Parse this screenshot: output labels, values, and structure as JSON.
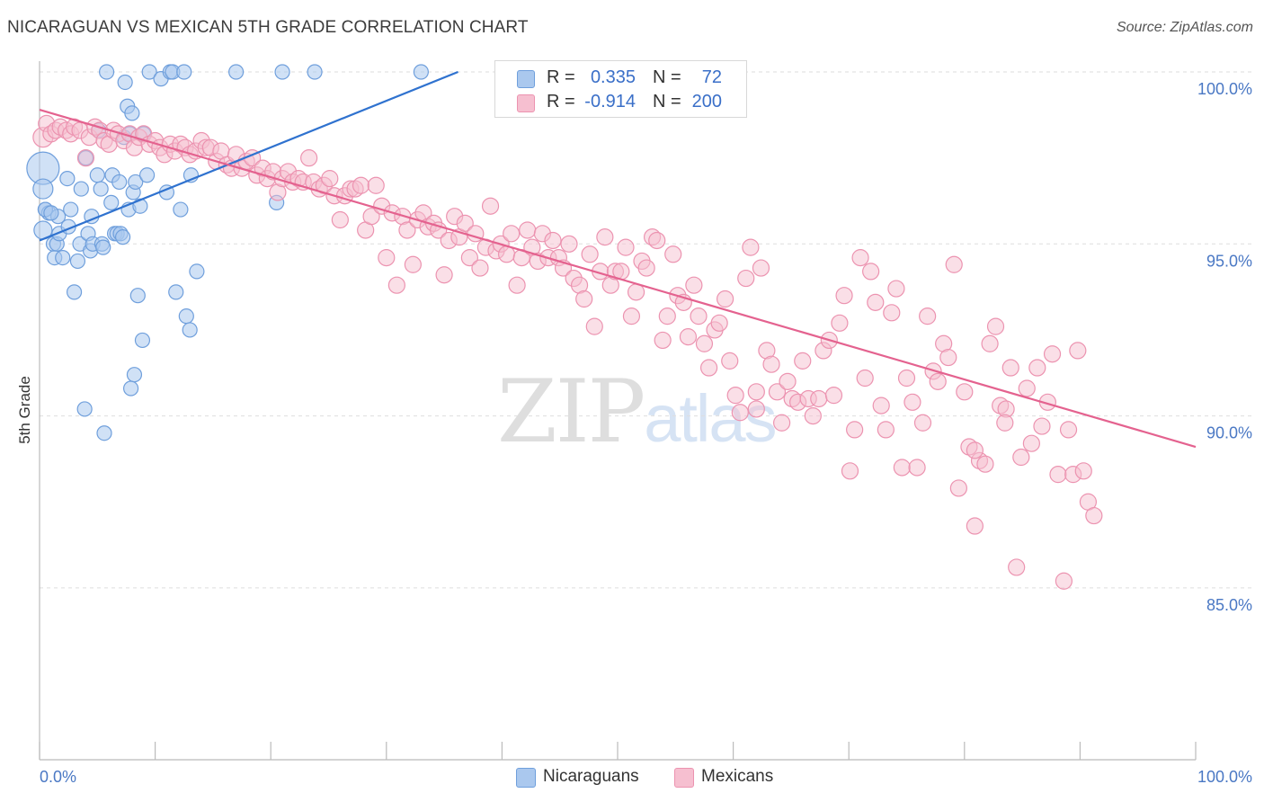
{
  "header": {
    "title": "NICARAGUAN VS MEXICAN 5TH GRADE CORRELATION CHART",
    "source": "Source: ZipAtlas.com"
  },
  "watermark": {
    "part1": "ZIP",
    "part2": "atlas"
  },
  "legend_top": [
    {
      "r_label": "R =",
      "r_value": "0.335",
      "n_label": "N =",
      "n_value": "72"
    },
    {
      "r_label": "R =",
      "r_value": "-0.914",
      "n_label": "N =",
      "n_value": "200"
    }
  ],
  "legend_bottom": [
    {
      "label": "Nicaraguans"
    },
    {
      "label": "Mexicans"
    }
  ],
  "colors": {
    "nicaraguans_fill": "#aac8ee",
    "nicaraguans_stroke": "#6f9fdc",
    "nicaraguans_line": "#2f72cf",
    "mexicans_fill": "#f6bfd0",
    "mexicans_stroke": "#ec93b0",
    "mexicans_line": "#e4628f",
    "grid": "#dedede",
    "axis_label": "#4a78c4"
  },
  "chart_data": {
    "type": "scatter",
    "title": "NICARAGUAN VS MEXICAN 5TH GRADE CORRELATION CHART",
    "xlabel": "",
    "ylabel": "5th Grade",
    "x_tick_labels": [
      "0.0%",
      "100.0%"
    ],
    "y_tick_labels": [
      "100.0%",
      "95.0%",
      "90.0%",
      "85.0%"
    ],
    "y_ticks": [
      100,
      95,
      90,
      85
    ],
    "xlim": [
      0,
      100
    ],
    "ylim": [
      80.5,
      100.4
    ],
    "grid": "horizontal dashed",
    "legend_placement": "top-center",
    "series": [
      {
        "name": "Nicaraguans",
        "r": 0.335,
        "n": 72,
        "trend": {
          "x": [
            0,
            36.2
          ],
          "y": [
            95.1,
            100.0
          ]
        },
        "points": [
          [
            0.3,
            97.2
          ],
          [
            0.3,
            96.6
          ],
          [
            0.3,
            95.4
          ],
          [
            0.5,
            96.0
          ],
          [
            0.8,
            95.9
          ],
          [
            1.2,
            95.0
          ],
          [
            1.3,
            94.6
          ],
          [
            1.5,
            95.0
          ],
          [
            1.6,
            95.8
          ],
          [
            1.7,
            95.3
          ],
          [
            2.0,
            94.6
          ],
          [
            2.4,
            96.9
          ],
          [
            2.5,
            95.5
          ],
          [
            2.7,
            96.0
          ],
          [
            3.0,
            93.6
          ],
          [
            3.3,
            94.5
          ],
          [
            3.5,
            95.0
          ],
          [
            3.6,
            96.6
          ],
          [
            3.9,
            90.2
          ],
          [
            4.0,
            97.5
          ],
          [
            4.2,
            95.3
          ],
          [
            4.4,
            94.8
          ],
          [
            4.5,
            95.8
          ],
          [
            4.6,
            95.0
          ],
          [
            5.0,
            97.0
          ],
          [
            5.1,
            98.3
          ],
          [
            5.3,
            96.6
          ],
          [
            5.4,
            95.0
          ],
          [
            5.5,
            94.9
          ],
          [
            5.6,
            89.5
          ],
          [
            5.8,
            100.0
          ],
          [
            6.2,
            96.2
          ],
          [
            6.3,
            97.0
          ],
          [
            6.5,
            95.3
          ],
          [
            6.7,
            95.3
          ],
          [
            6.9,
            96.8
          ],
          [
            7.0,
            95.3
          ],
          [
            7.2,
            95.2
          ],
          [
            7.3,
            98.1
          ],
          [
            7.4,
            99.7
          ],
          [
            7.6,
            99.0
          ],
          [
            7.7,
            96.0
          ],
          [
            7.8,
            98.2
          ],
          [
            7.9,
            90.8
          ],
          [
            8.0,
            98.8
          ],
          [
            8.1,
            96.5
          ],
          [
            8.2,
            91.2
          ],
          [
            8.3,
            96.8
          ],
          [
            8.5,
            93.5
          ],
          [
            8.7,
            96.1
          ],
          [
            8.9,
            92.2
          ],
          [
            9.0,
            98.2
          ],
          [
            9.3,
            97.0
          ],
          [
            9.5,
            100.0
          ],
          [
            10.5,
            99.8
          ],
          [
            11.0,
            96.5
          ],
          [
            11.3,
            100.0
          ],
          [
            11.5,
            100.0
          ],
          [
            11.8,
            93.6
          ],
          [
            12.2,
            96.0
          ],
          [
            12.5,
            100.0
          ],
          [
            12.7,
            92.9
          ],
          [
            13.0,
            92.5
          ],
          [
            13.1,
            97.0
          ],
          [
            13.6,
            94.2
          ],
          [
            17.0,
            100.0
          ],
          [
            20.5,
            96.2
          ],
          [
            21.0,
            100.0
          ],
          [
            23.8,
            100.0
          ],
          [
            33.0,
            100.0
          ],
          [
            0.5,
            96.0
          ],
          [
            1.0,
            95.9
          ]
        ]
      },
      {
        "name": "Mexicans",
        "r": -0.914,
        "n": 200,
        "trend": {
          "x": [
            0,
            100
          ],
          "y": [
            98.9,
            89.1
          ]
        },
        "points": [
          [
            0.3,
            98.1
          ],
          [
            0.6,
            98.5
          ],
          [
            1.0,
            98.2
          ],
          [
            1.4,
            98.3
          ],
          [
            1.8,
            98.4
          ],
          [
            2.3,
            98.3
          ],
          [
            2.7,
            98.2
          ],
          [
            3.0,
            98.4
          ],
          [
            3.5,
            98.3
          ],
          [
            4.0,
            97.5
          ],
          [
            4.3,
            98.1
          ],
          [
            4.8,
            98.4
          ],
          [
            5.2,
            98.3
          ],
          [
            5.6,
            98.0
          ],
          [
            6.0,
            97.9
          ],
          [
            6.4,
            98.3
          ],
          [
            6.8,
            98.2
          ],
          [
            7.3,
            98.0
          ],
          [
            7.8,
            98.2
          ],
          [
            8.2,
            97.8
          ],
          [
            8.6,
            98.1
          ],
          [
            9.0,
            98.2
          ],
          [
            9.5,
            97.9
          ],
          [
            10.0,
            98.0
          ],
          [
            10.4,
            97.8
          ],
          [
            10.8,
            97.6
          ],
          [
            11.3,
            97.9
          ],
          [
            11.7,
            97.7
          ],
          [
            12.2,
            97.9
          ],
          [
            12.6,
            97.8
          ],
          [
            13.0,
            97.6
          ],
          [
            13.5,
            97.7
          ],
          [
            14.0,
            98.0
          ],
          [
            14.4,
            97.8
          ],
          [
            14.8,
            97.8
          ],
          [
            15.3,
            97.4
          ],
          [
            15.7,
            97.7
          ],
          [
            16.2,
            97.3
          ],
          [
            16.6,
            97.2
          ],
          [
            17.0,
            97.6
          ],
          [
            17.5,
            97.2
          ],
          [
            17.9,
            97.4
          ],
          [
            18.4,
            97.5
          ],
          [
            18.8,
            97.0
          ],
          [
            19.3,
            97.2
          ],
          [
            19.7,
            96.9
          ],
          [
            20.2,
            97.1
          ],
          [
            20.6,
            96.5
          ],
          [
            21.0,
            96.9
          ],
          [
            21.5,
            97.1
          ],
          [
            21.9,
            96.8
          ],
          [
            22.4,
            96.9
          ],
          [
            22.8,
            96.8
          ],
          [
            23.3,
            97.5
          ],
          [
            23.7,
            96.8
          ],
          [
            24.2,
            96.6
          ],
          [
            24.6,
            96.7
          ],
          [
            25.1,
            96.9
          ],
          [
            25.5,
            96.4
          ],
          [
            26.0,
            95.7
          ],
          [
            26.4,
            96.4
          ],
          [
            26.9,
            96.6
          ],
          [
            27.3,
            96.6
          ],
          [
            27.8,
            96.7
          ],
          [
            28.2,
            95.4
          ],
          [
            28.7,
            95.8
          ],
          [
            29.1,
            96.7
          ],
          [
            29.6,
            96.1
          ],
          [
            30.0,
            94.6
          ],
          [
            30.5,
            95.9
          ],
          [
            30.9,
            93.8
          ],
          [
            31.4,
            95.8
          ],
          [
            31.8,
            95.4
          ],
          [
            32.3,
            94.4
          ],
          [
            32.7,
            95.7
          ],
          [
            33.2,
            95.9
          ],
          [
            33.6,
            95.5
          ],
          [
            34.1,
            95.6
          ],
          [
            34.5,
            95.4
          ],
          [
            35.0,
            94.1
          ],
          [
            35.4,
            95.1
          ],
          [
            35.9,
            95.8
          ],
          [
            36.3,
            95.2
          ],
          [
            36.8,
            95.6
          ],
          [
            37.2,
            94.6
          ],
          [
            37.7,
            95.3
          ],
          [
            38.1,
            94.3
          ],
          [
            38.6,
            94.9
          ],
          [
            39.0,
            96.1
          ],
          [
            39.5,
            94.8
          ],
          [
            39.9,
            95.0
          ],
          [
            40.4,
            94.7
          ],
          [
            40.8,
            95.3
          ],
          [
            41.3,
            93.8
          ],
          [
            41.7,
            94.6
          ],
          [
            42.2,
            95.4
          ],
          [
            42.6,
            94.9
          ],
          [
            43.1,
            94.5
          ],
          [
            43.5,
            95.3
          ],
          [
            44.0,
            94.6
          ],
          [
            44.4,
            95.1
          ],
          [
            44.9,
            94.6
          ],
          [
            45.3,
            94.3
          ],
          [
            45.8,
            95.0
          ],
          [
            46.2,
            94.0
          ],
          [
            46.7,
            93.8
          ],
          [
            47.1,
            93.4
          ],
          [
            47.6,
            94.7
          ],
          [
            48.0,
            92.6
          ],
          [
            48.5,
            94.2
          ],
          [
            48.9,
            95.2
          ],
          [
            49.4,
            93.8
          ],
          [
            49.8,
            94.2
          ],
          [
            50.3,
            94.2
          ],
          [
            50.7,
            94.9
          ],
          [
            51.2,
            92.9
          ],
          [
            51.6,
            93.6
          ],
          [
            52.1,
            94.5
          ],
          [
            52.5,
            94.3
          ],
          [
            53.0,
            95.2
          ],
          [
            53.4,
            95.1
          ],
          [
            53.9,
            92.2
          ],
          [
            54.3,
            92.9
          ],
          [
            54.8,
            94.7
          ],
          [
            55.2,
            93.5
          ],
          [
            55.7,
            93.3
          ],
          [
            56.1,
            92.3
          ],
          [
            56.6,
            93.8
          ],
          [
            57.0,
            92.9
          ],
          [
            57.5,
            92.1
          ],
          [
            57.9,
            91.4
          ],
          [
            58.4,
            92.5
          ],
          [
            58.8,
            92.7
          ],
          [
            59.3,
            93.4
          ],
          [
            59.7,
            91.6
          ],
          [
            60.2,
            90.6
          ],
          [
            60.6,
            90.1
          ],
          [
            61.1,
            94.0
          ],
          [
            61.5,
            94.9
          ],
          [
            62.0,
            90.2
          ],
          [
            62.4,
            94.3
          ],
          [
            62.9,
            91.9
          ],
          [
            63.3,
            91.5
          ],
          [
            63.8,
            90.7
          ],
          [
            64.2,
            89.8
          ],
          [
            64.7,
            91.0
          ],
          [
            65.1,
            90.5
          ],
          [
            65.6,
            90.4
          ],
          [
            66.0,
            91.6
          ],
          [
            66.5,
            90.5
          ],
          [
            66.9,
            90.0
          ],
          [
            67.4,
            90.5
          ],
          [
            67.8,
            91.9
          ],
          [
            68.3,
            92.2
          ],
          [
            68.7,
            90.6
          ],
          [
            69.2,
            92.7
          ],
          [
            69.6,
            93.5
          ],
          [
            70.1,
            88.4
          ],
          [
            70.5,
            89.6
          ],
          [
            71.0,
            94.6
          ],
          [
            71.4,
            91.1
          ],
          [
            71.9,
            94.2
          ],
          [
            72.3,
            93.3
          ],
          [
            72.8,
            90.3
          ],
          [
            73.2,
            89.6
          ],
          [
            73.7,
            93.0
          ],
          [
            74.1,
            93.7
          ],
          [
            74.6,
            88.5
          ],
          [
            75.0,
            91.1
          ],
          [
            75.5,
            90.4
          ],
          [
            75.9,
            88.5
          ],
          [
            76.4,
            89.8
          ],
          [
            76.8,
            92.9
          ],
          [
            77.3,
            91.3
          ],
          [
            77.7,
            91.0
          ],
          [
            78.2,
            92.1
          ],
          [
            78.6,
            91.7
          ],
          [
            79.1,
            94.4
          ],
          [
            79.5,
            87.9
          ],
          [
            80.0,
            90.7
          ],
          [
            80.4,
            89.1
          ],
          [
            80.9,
            86.8
          ],
          [
            81.3,
            88.7
          ],
          [
            81.8,
            88.6
          ],
          [
            82.2,
            92.1
          ],
          [
            82.7,
            92.6
          ],
          [
            83.1,
            90.3
          ],
          [
            83.6,
            90.2
          ],
          [
            84.0,
            91.4
          ],
          [
            84.5,
            85.6
          ],
          [
            84.9,
            88.8
          ],
          [
            85.4,
            90.8
          ],
          [
            85.8,
            89.2
          ],
          [
            86.3,
            91.4
          ],
          [
            86.7,
            89.7
          ],
          [
            87.2,
            90.4
          ],
          [
            87.6,
            91.8
          ],
          [
            88.1,
            88.3
          ],
          [
            88.6,
            85.2
          ],
          [
            89.0,
            89.6
          ],
          [
            89.4,
            88.3
          ],
          [
            89.8,
            91.9
          ],
          [
            90.3,
            88.4
          ],
          [
            90.7,
            87.5
          ],
          [
            91.2,
            87.1
          ],
          [
            80.9,
            89.0
          ],
          [
            83.5,
            89.8
          ],
          [
            62.0,
            90.7
          ]
        ]
      }
    ]
  }
}
